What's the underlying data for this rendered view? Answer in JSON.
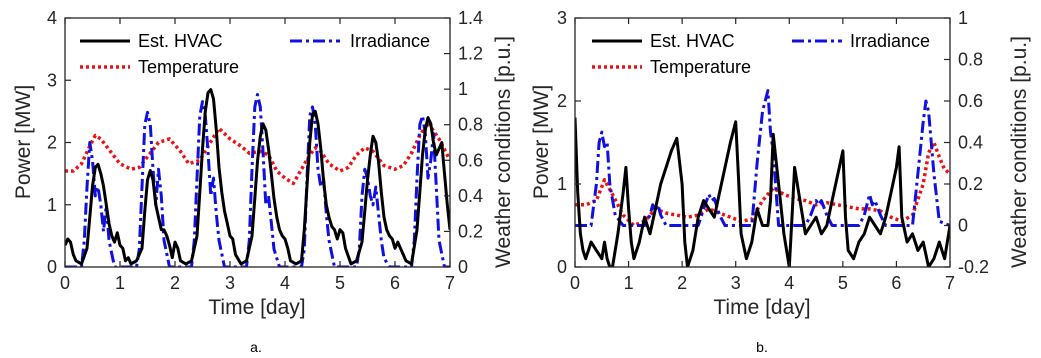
{
  "chart_data": [
    {
      "type": "line",
      "caption": "a.",
      "xlabel": "Time [day]",
      "ylabel": "Power [MW]",
      "y2label": "Weather conditions [p.u.]",
      "xlim": [
        0,
        7
      ],
      "ylim": [
        0,
        4
      ],
      "y2lim": [
        0,
        1.4
      ],
      "xticks": [
        "0",
        "1",
        "2",
        "3",
        "4",
        "5",
        "6",
        "7"
      ],
      "yticks": [
        "0",
        "1",
        "2",
        "3",
        "4"
      ],
      "y2ticks": [
        "0",
        "0.2",
        "0.4",
        "0.6",
        "0.8",
        "1",
        "1.2",
        "1.4"
      ],
      "grid": false,
      "legend": [
        {
          "name": "Est. HVAC",
          "style": "solid",
          "color": "#000000"
        },
        {
          "name": "Irradiance",
          "style": "dashdot",
          "color": "#1010e0"
        },
        {
          "name": "Temperature",
          "style": "dotted",
          "color": "#ee1111"
        }
      ],
      "series": [
        {
          "name": "Est. HVAC",
          "axis": "left",
          "x": [
            0,
            0.05,
            0.1,
            0.15,
            0.2,
            0.3,
            0.4,
            0.45,
            0.5,
            0.55,
            0.6,
            0.65,
            0.7,
            0.75,
            0.8,
            0.85,
            0.9,
            0.95,
            1.0,
            1.05,
            1.1,
            1.15,
            1.2,
            1.3,
            1.4,
            1.45,
            1.5,
            1.55,
            1.6,
            1.65,
            1.7,
            1.75,
            1.8,
            1.85,
            1.9,
            1.95,
            2.0,
            2.05,
            2.1,
            2.2,
            2.3,
            2.4,
            2.45,
            2.5,
            2.55,
            2.6,
            2.65,
            2.7,
            2.75,
            2.8,
            2.85,
            2.9,
            2.95,
            3.0,
            3.05,
            3.1,
            3.2,
            3.3,
            3.4,
            3.45,
            3.5,
            3.55,
            3.6,
            3.65,
            3.7,
            3.75,
            3.8,
            3.85,
            3.9,
            3.95,
            4.0,
            4.05,
            4.1,
            4.2,
            4.3,
            4.35,
            4.4,
            4.45,
            4.5,
            4.55,
            4.6,
            4.65,
            4.7,
            4.75,
            4.8,
            4.85,
            4.9,
            4.95,
            5.0,
            5.05,
            5.1,
            5.2,
            5.3,
            5.4,
            5.45,
            5.5,
            5.55,
            5.6,
            5.65,
            5.7,
            5.75,
            5.8,
            5.85,
            5.9,
            5.95,
            6.0,
            6.05,
            6.1,
            6.2,
            6.3,
            6.4,
            6.45,
            6.5,
            6.55,
            6.6,
            6.65,
            6.7,
            6.75,
            6.8,
            6.85,
            6.9,
            6.95,
            7.0
          ],
          "y": [
            0.35,
            0.45,
            0.4,
            0.2,
            0.1,
            0.05,
            0.3,
            0.8,
            1.3,
            1.6,
            1.65,
            1.5,
            1.3,
            1.0,
            0.7,
            0.5,
            0.4,
            0.55,
            0.35,
            0.3,
            0.1,
            0.15,
            0.05,
            0.1,
            0.3,
            0.9,
            1.4,
            1.55,
            1.4,
            1.0,
            0.8,
            0.6,
            0.6,
            0.5,
            0.35,
            0.15,
            0.4,
            0.3,
            0.1,
            0.05,
            0.1,
            0.5,
            1.2,
            1.9,
            2.5,
            2.8,
            2.85,
            2.7,
            2.2,
            1.6,
            1.2,
            0.9,
            0.7,
            0.5,
            0.45,
            0.2,
            0.05,
            0.1,
            0.5,
            1.1,
            1.7,
            2.1,
            2.3,
            2.2,
            1.9,
            1.5,
            1.1,
            0.8,
            0.6,
            0.5,
            0.45,
            0.3,
            0.1,
            0.05,
            0.1,
            0.6,
            1.3,
            2.0,
            2.45,
            2.5,
            2.3,
            1.9,
            1.4,
            1.0,
            0.8,
            0.65,
            0.6,
            0.45,
            0.6,
            0.55,
            0.3,
            0.05,
            0.1,
            0.4,
            0.9,
            1.4,
            1.8,
            2.1,
            2.0,
            1.7,
            1.2,
            0.8,
            0.6,
            0.5,
            0.45,
            0.3,
            0.4,
            0.3,
            0.1,
            0.05,
            0.6,
            1.2,
            1.8,
            2.2,
            2.4,
            2.3,
            2.0,
            1.8,
            1.9,
            2.0,
            1.5,
            1.0,
            0.6
          ]
        },
        {
          "name": "Irradiance",
          "axis": "right",
          "x": [
            0,
            0.3,
            0.35,
            0.4,
            0.45,
            0.5,
            0.55,
            0.6,
            0.65,
            0.7,
            0.75,
            0.8,
            0.9,
            1.3,
            1.35,
            1.4,
            1.45,
            1.5,
            1.55,
            1.6,
            1.65,
            1.7,
            1.75,
            1.8,
            1.9,
            2.3,
            2.35,
            2.4,
            2.45,
            2.5,
            2.55,
            2.6,
            2.65,
            2.7,
            2.75,
            2.8,
            2.9,
            3.3,
            3.35,
            3.4,
            3.45,
            3.5,
            3.55,
            3.6,
            3.65,
            3.7,
            3.75,
            3.8,
            3.9,
            4.3,
            4.35,
            4.4,
            4.45,
            4.5,
            4.55,
            4.6,
            4.65,
            4.7,
            4.75,
            4.8,
            4.9,
            5.3,
            5.35,
            5.4,
            5.45,
            5.5,
            5.55,
            5.6,
            5.65,
            5.7,
            5.75,
            5.8,
            5.9,
            6.3,
            6.35,
            6.4,
            6.45,
            6.5,
            6.55,
            6.6,
            6.65,
            6.7,
            6.75,
            6.8,
            6.9,
            7.0
          ],
          "y": [
            0,
            0,
            0.15,
            0.45,
            0.7,
            0.6,
            0.4,
            0.45,
            0.35,
            0.2,
            0.35,
            0.15,
            0,
            0,
            0.1,
            0.45,
            0.8,
            0.87,
            0.8,
            0.55,
            0.35,
            0.55,
            0.4,
            0.15,
            0,
            0,
            0.15,
            0.5,
            0.85,
            0.93,
            0.85,
            0.65,
            0.4,
            0.5,
            0.3,
            0.15,
            0,
            0,
            0.15,
            0.55,
            0.9,
            0.97,
            0.9,
            0.65,
            0.35,
            0.4,
            0.25,
            0.1,
            0,
            0,
            0.1,
            0.5,
            0.85,
            0.9,
            0.8,
            0.55,
            0.45,
            0.5,
            0.3,
            0.15,
            0,
            0,
            0.1,
            0.4,
            0.55,
            0.5,
            0.4,
            0.35,
            0.45,
            0.3,
            0.15,
            0.05,
            0,
            0,
            0.15,
            0.5,
            0.8,
            0.85,
            0.75,
            0.5,
            0.6,
            0.75,
            0.45,
            0.15,
            0,
            0
          ]
        },
        {
          "name": "Temperature",
          "axis": "right",
          "x": [
            0,
            0.15,
            0.3,
            0.45,
            0.55,
            0.65,
            0.8,
            1.0,
            1.2,
            1.35,
            1.55,
            1.7,
            1.9,
            2.1,
            2.25,
            2.45,
            2.6,
            2.8,
            3.0,
            3.2,
            3.35,
            3.55,
            3.7,
            3.85,
            4.0,
            4.15,
            4.3,
            4.45,
            4.55,
            4.65,
            4.8,
            5.0,
            5.15,
            5.3,
            5.45,
            5.6,
            5.8,
            6.0,
            6.15,
            6.3,
            6.45,
            6.6,
            6.8,
            7.0
          ],
          "y": [
            0.54,
            0.54,
            0.58,
            0.68,
            0.74,
            0.72,
            0.66,
            0.58,
            0.55,
            0.56,
            0.64,
            0.7,
            0.72,
            0.65,
            0.58,
            0.6,
            0.68,
            0.78,
            0.72,
            0.68,
            0.64,
            0.65,
            0.63,
            0.54,
            0.5,
            0.47,
            0.55,
            0.63,
            0.67,
            0.65,
            0.58,
            0.54,
            0.56,
            0.63,
            0.67,
            0.65,
            0.57,
            0.55,
            0.57,
            0.64,
            0.74,
            0.81,
            0.72,
            0.6
          ]
        }
      ]
    },
    {
      "type": "line",
      "caption": "b.",
      "xlabel": "Time [day]",
      "ylabel": "Power [MW]",
      "y2label": "Weather conditions [p.u.]",
      "xlim": [
        0,
        7
      ],
      "ylim": [
        0,
        3
      ],
      "y2lim": [
        -0.2,
        1
      ],
      "xticks": [
        "0",
        "1",
        "2",
        "3",
        "4",
        "5",
        "6",
        "7"
      ],
      "yticks": [
        "0",
        "1",
        "2",
        "3"
      ],
      "y2ticks": [
        "-0.2",
        "0",
        "0.2",
        "0.4",
        "0.6",
        "0.8",
        "1"
      ],
      "grid": false,
      "legend": [
        {
          "name": "Est. HVAC",
          "style": "solid",
          "color": "#000000"
        },
        {
          "name": "Irradiance",
          "style": "dashdot",
          "color": "#1010e0"
        },
        {
          "name": "Temperature",
          "style": "dotted",
          "color": "#ee1111"
        }
      ],
      "series": [
        {
          "name": "Est. HVAC",
          "axis": "left",
          "x": [
            0,
            0.05,
            0.1,
            0.15,
            0.2,
            0.3,
            0.4,
            0.5,
            0.55,
            0.6,
            0.65,
            0.7,
            0.8,
            0.9,
            0.95,
            1.0,
            1.05,
            1.1,
            1.2,
            1.3,
            1.4,
            1.5,
            1.6,
            1.7,
            1.8,
            1.9,
            2.0,
            2.05,
            2.1,
            2.2,
            2.3,
            2.4,
            2.5,
            2.6,
            2.7,
            2.8,
            2.9,
            3.0,
            3.05,
            3.1,
            3.2,
            3.3,
            3.4,
            3.5,
            3.6,
            3.65,
            3.7,
            3.8,
            3.9,
            4.0,
            4.05,
            4.1,
            4.2,
            4.3,
            4.4,
            4.5,
            4.6,
            4.7,
            4.8,
            4.9,
            5.0,
            5.05,
            5.1,
            5.2,
            5.3,
            5.4,
            5.5,
            5.6,
            5.7,
            5.8,
            5.9,
            6.0,
            6.05,
            6.1,
            6.2,
            6.3,
            6.4,
            6.5,
            6.6,
            6.7,
            6.8,
            6.9,
            7.0
          ],
          "y": [
            1.8,
            0.9,
            0.4,
            0.2,
            0.1,
            0.3,
            0.2,
            0.1,
            0.3,
            0.1,
            0.0,
            0.0,
            0.4,
            0.9,
            1.2,
            0.7,
            0.3,
            0.1,
            0.3,
            0.6,
            0.4,
            0.7,
            1.0,
            1.2,
            1.4,
            1.55,
            1.0,
            0.3,
            0.0,
            0.2,
            0.6,
            0.8,
            0.7,
            0.6,
            0.9,
            1.2,
            1.5,
            1.75,
            1.1,
            0.4,
            0.1,
            0.3,
            0.7,
            0.5,
            0.5,
            0.8,
            1.6,
            1.0,
            0.4,
            0.0,
            0.6,
            1.2,
            0.8,
            0.4,
            0.5,
            0.6,
            0.4,
            0.5,
            0.8,
            1.1,
            1.4,
            0.6,
            0.2,
            0.1,
            0.3,
            0.4,
            0.6,
            0.5,
            0.4,
            0.6,
            0.9,
            1.2,
            1.45,
            0.6,
            0.3,
            0.4,
            0.2,
            0.3,
            0.0,
            0.1,
            0.3,
            0.1,
            0.5
          ]
        },
        {
          "name": "Irradiance",
          "axis": "right",
          "x": [
            0,
            0.3,
            0.4,
            0.45,
            0.5,
            0.55,
            0.6,
            0.65,
            0.75,
            0.9,
            1.3,
            1.4,
            1.45,
            1.5,
            1.55,
            1.6,
            1.7,
            1.8,
            2.3,
            2.4,
            2.5,
            2.55,
            2.6,
            2.7,
            2.8,
            3.3,
            3.4,
            3.5,
            3.55,
            3.6,
            3.65,
            3.7,
            3.8,
            4.3,
            4.4,
            4.5,
            4.55,
            4.6,
            4.7,
            4.8,
            5.3,
            5.4,
            5.5,
            5.55,
            5.6,
            5.7,
            5.8,
            6.3,
            6.4,
            6.5,
            6.55,
            6.6,
            6.7,
            6.8,
            7.0
          ],
          "y": [
            0,
            0,
            0.2,
            0.4,
            0.45,
            0.38,
            0.4,
            0.2,
            0.05,
            0,
            0,
            0.05,
            0.1,
            0.07,
            0.1,
            0.05,
            0,
            0,
            0,
            0.08,
            0.15,
            0.12,
            0.13,
            0.05,
            0,
            0,
            0.3,
            0.55,
            0.6,
            0.65,
            0.45,
            0.35,
            0,
            0,
            0.05,
            0.12,
            0.1,
            0.12,
            0.05,
            0,
            0,
            0.05,
            0.15,
            0.1,
            0.12,
            0.05,
            0,
            0,
            0.25,
            0.5,
            0.6,
            0.55,
            0.25,
            0.02,
            0
          ]
        },
        {
          "name": "Temperature",
          "axis": "right",
          "x": [
            0,
            0.2,
            0.4,
            0.55,
            0.7,
            0.9,
            1.1,
            1.3,
            1.5,
            1.7,
            1.9,
            2.1,
            2.3,
            2.5,
            2.7,
            2.9,
            3.1,
            3.3,
            3.5,
            3.7,
            3.9,
            4.1,
            4.3,
            4.5,
            4.7,
            4.9,
            5.1,
            5.3,
            5.5,
            5.7,
            5.9,
            6.1,
            6.3,
            6.5,
            6.6,
            6.7,
            6.8,
            6.9,
            7.0
          ],
          "y": [
            0.1,
            0.1,
            0.12,
            0.22,
            0.15,
            0.05,
            0.0,
            0.02,
            0.08,
            0.06,
            0.05,
            0.04,
            0.05,
            0.08,
            0.06,
            0.04,
            0.02,
            0.03,
            0.12,
            0.18,
            0.15,
            0.13,
            0.12,
            0.1,
            0.11,
            0.1,
            0.09,
            0.08,
            0.08,
            0.07,
            0.04,
            0.02,
            0.05,
            0.2,
            0.35,
            0.4,
            0.33,
            0.27,
            0.25
          ]
        }
      ]
    }
  ]
}
